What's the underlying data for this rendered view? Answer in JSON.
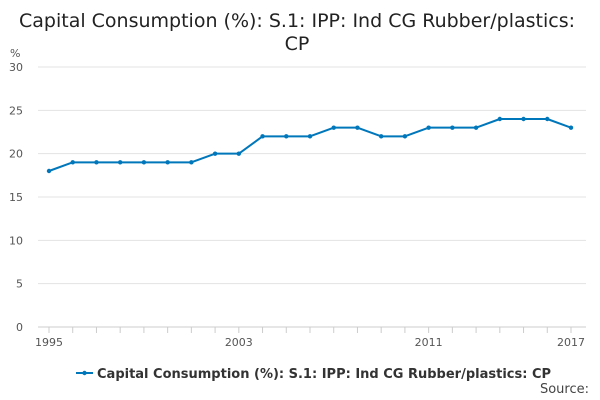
{
  "chart_data": {
    "type": "line",
    "title_lines": [
      "Capital Consumption (%): S.1: IPP: Ind CG Rubber/plastics:",
      "CP"
    ],
    "ylabel": "%",
    "xlabel": "",
    "ylim": [
      0,
      30
    ],
    "yticks": [
      0,
      5,
      10,
      15,
      20,
      25,
      30
    ],
    "x": [
      1995,
      1996,
      1997,
      1998,
      1999,
      2000,
      2001,
      2002,
      2003,
      2004,
      2005,
      2006,
      2007,
      2008,
      2009,
      2010,
      2011,
      2012,
      2013,
      2014,
      2015,
      2016,
      2017
    ],
    "x_tick_labels": [
      1995,
      2003,
      2011,
      2017
    ],
    "grid": true,
    "series": [
      {
        "name": "Capital Consumption (%): S.1: IPP: Ind CG Rubber/plastics: CP",
        "color": "#0077bb",
        "values": [
          18,
          19,
          19,
          19,
          19,
          19,
          19,
          20,
          20,
          22,
          22,
          22,
          23,
          23,
          22,
          22,
          23,
          23,
          23,
          24,
          24,
          24,
          23
        ]
      }
    ],
    "legend_position": "bottom-center",
    "source_label": "Source:"
  }
}
